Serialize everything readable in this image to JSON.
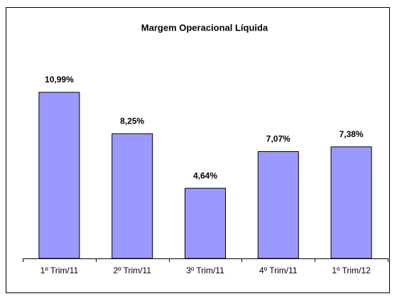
{
  "chart_data": {
    "type": "bar",
    "title": "Margem Operacional Líquida",
    "categories": [
      "1º Trim/11",
      "2º Trim/11",
      "3º Trim/11",
      "4º Trim/11",
      "1º Trim/12"
    ],
    "values": [
      10.99,
      8.25,
      4.64,
      7.07,
      7.38
    ],
    "value_labels": [
      "10,99%",
      "8,25%",
      "4,64%",
      "7,07%",
      "7,38%"
    ],
    "color": "#9999ff"
  }
}
